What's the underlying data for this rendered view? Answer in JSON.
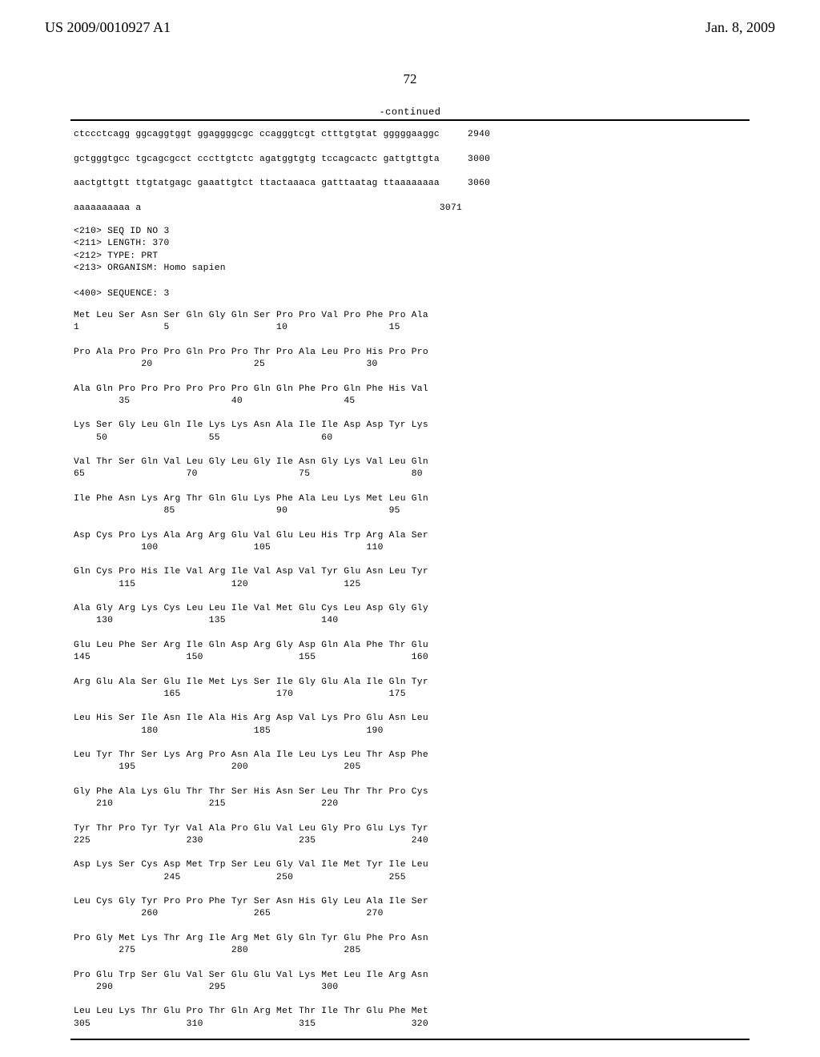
{
  "header": {
    "pub_number": "US 2009/0010927 A1",
    "pub_date": "Jan. 8, 2009"
  },
  "page_number": "72",
  "continued_label": "-continued",
  "nucleotide": {
    "lines": [
      {
        "seq": "ctccctcagg ggcaggtggt ggaggggcgc ccagggtcgt ctttgtgtat gggggaaggc",
        "pos": "2940"
      },
      {
        "seq": "gctgggtgcc tgcagcgcct cccttgtctc agatggtgtg tccagcactc gattgttgta",
        "pos": "3000"
      },
      {
        "seq": "aactgttgtt ttgtatgagc gaaattgtct ttactaaaca gatttaatag ttaaaaaaaa",
        "pos": "3060"
      },
      {
        "seq": "aaaaaaaaaa a",
        "pos": "3071"
      }
    ]
  },
  "meta": {
    "lines": [
      "<210> SEQ ID NO 3",
      "<211> LENGTH: 370",
      "<212> TYPE: PRT",
      "<213> ORGANISM: Homo sapien",
      "",
      "<400> SEQUENCE: 3"
    ]
  },
  "protein": {
    "rows": [
      {
        "aa": "Met Leu Ser Asn Ser Gln Gly Gln Ser Pro Pro Val Pro Phe Pro Ala",
        "nums": [
          "1",
          "",
          "",
          "",
          "5",
          "",
          "",
          "",
          "",
          "10",
          "",
          "",
          "",
          "",
          "15",
          ""
        ]
      },
      {
        "aa": "Pro Ala Pro Pro Pro Gln Pro Pro Thr Pro Ala Leu Pro His Pro Pro",
        "nums": [
          "",
          "",
          "",
          "20",
          "",
          "",
          "",
          "",
          "25",
          "",
          "",
          "",
          "",
          "30",
          "",
          ""
        ]
      },
      {
        "aa": "Ala Gln Pro Pro Pro Pro Pro Pro Gln Gln Phe Pro Gln Phe His Val",
        "nums": [
          "",
          "",
          "35",
          "",
          "",
          "",
          "",
          "40",
          "",
          "",
          "",
          "",
          "45",
          "",
          "",
          ""
        ]
      },
      {
        "aa": "Lys Ser Gly Leu Gln Ile Lys Lys Asn Ala Ile Ile Asp Asp Tyr Lys",
        "nums": [
          "",
          "50",
          "",
          "",
          "",
          "",
          "55",
          "",
          "",
          "",
          "",
          "60",
          "",
          "",
          "",
          ""
        ]
      },
      {
        "aa": "Val Thr Ser Gln Val Leu Gly Leu Gly Ile Asn Gly Lys Val Leu Gln",
        "nums": [
          "65",
          "",
          "",
          "",
          "",
          "70",
          "",
          "",
          "",
          "",
          "75",
          "",
          "",
          "",
          "",
          "80"
        ]
      },
      {
        "aa": "Ile Phe Asn Lys Arg Thr Gln Glu Lys Phe Ala Leu Lys Met Leu Gln",
        "nums": [
          "",
          "",
          "",
          "",
          "85",
          "",
          "",
          "",
          "",
          "90",
          "",
          "",
          "",
          "",
          "95",
          ""
        ]
      },
      {
        "aa": "Asp Cys Pro Lys Ala Arg Arg Glu Val Glu Leu His Trp Arg Ala Ser",
        "nums": [
          "",
          "",
          "",
          "100",
          "",
          "",
          "",
          "",
          "105",
          "",
          "",
          "",
          "",
          "110",
          "",
          ""
        ]
      },
      {
        "aa": "Gln Cys Pro His Ile Val Arg Ile Val Asp Val Tyr Glu Asn Leu Tyr",
        "nums": [
          "",
          "",
          "115",
          "",
          "",
          "",
          "",
          "120",
          "",
          "",
          "",
          "",
          "125",
          "",
          "",
          ""
        ]
      },
      {
        "aa": "Ala Gly Arg Lys Cys Leu Leu Ile Val Met Glu Cys Leu Asp Gly Gly",
        "nums": [
          "",
          "130",
          "",
          "",
          "",
          "",
          "135",
          "",
          "",
          "",
          "",
          "140",
          "",
          "",
          "",
          ""
        ]
      },
      {
        "aa": "Glu Leu Phe Ser Arg Ile Gln Asp Arg Gly Asp Gln Ala Phe Thr Glu",
        "nums": [
          "145",
          "",
          "",
          "",
          "",
          "150",
          "",
          "",
          "",
          "",
          "155",
          "",
          "",
          "",
          "",
          "160"
        ]
      },
      {
        "aa": "Arg Glu Ala Ser Glu Ile Met Lys Ser Ile Gly Glu Ala Ile Gln Tyr",
        "nums": [
          "",
          "",
          "",
          "",
          "165",
          "",
          "",
          "",
          "",
          "170",
          "",
          "",
          "",
          "",
          "175",
          ""
        ]
      },
      {
        "aa": "Leu His Ser Ile Asn Ile Ala His Arg Asp Val Lys Pro Glu Asn Leu",
        "nums": [
          "",
          "",
          "",
          "180",
          "",
          "",
          "",
          "",
          "185",
          "",
          "",
          "",
          "",
          "190",
          "",
          ""
        ]
      },
      {
        "aa": "Leu Tyr Thr Ser Lys Arg Pro Asn Ala Ile Leu Lys Leu Thr Asp Phe",
        "nums": [
          "",
          "",
          "195",
          "",
          "",
          "",
          "",
          "200",
          "",
          "",
          "",
          "",
          "205",
          "",
          "",
          ""
        ]
      },
      {
        "aa": "Gly Phe Ala Lys Glu Thr Thr Ser His Asn Ser Leu Thr Thr Pro Cys",
        "nums": [
          "",
          "210",
          "",
          "",
          "",
          "",
          "215",
          "",
          "",
          "",
          "",
          "220",
          "",
          "",
          "",
          ""
        ]
      },
      {
        "aa": "Tyr Thr Pro Tyr Tyr Val Ala Pro Glu Val Leu Gly Pro Glu Lys Tyr",
        "nums": [
          "225",
          "",
          "",
          "",
          "",
          "230",
          "",
          "",
          "",
          "",
          "235",
          "",
          "",
          "",
          "",
          "240"
        ]
      },
      {
        "aa": "Asp Lys Ser Cys Asp Met Trp Ser Leu Gly Val Ile Met Tyr Ile Leu",
        "nums": [
          "",
          "",
          "",
          "",
          "245",
          "",
          "",
          "",
          "",
          "250",
          "",
          "",
          "",
          "",
          "255",
          ""
        ]
      },
      {
        "aa": "Leu Cys Gly Tyr Pro Pro Phe Tyr Ser Asn His Gly Leu Ala Ile Ser",
        "nums": [
          "",
          "",
          "",
          "260",
          "",
          "",
          "",
          "",
          "265",
          "",
          "",
          "",
          "",
          "270",
          "",
          ""
        ]
      },
      {
        "aa": "Pro Gly Met Lys Thr Arg Ile Arg Met Gly Gln Tyr Glu Phe Pro Asn",
        "nums": [
          "",
          "",
          "275",
          "",
          "",
          "",
          "",
          "280",
          "",
          "",
          "",
          "",
          "285",
          "",
          "",
          ""
        ]
      },
      {
        "aa": "Pro Glu Trp Ser Glu Val Ser Glu Glu Val Lys Met Leu Ile Arg Asn",
        "nums": [
          "",
          "290",
          "",
          "",
          "",
          "",
          "295",
          "",
          "",
          "",
          "",
          "300",
          "",
          "",
          "",
          ""
        ]
      },
      {
        "aa": "Leu Leu Lys Thr Glu Pro Thr Gln Arg Met Thr Ile Thr Glu Phe Met",
        "nums": [
          "305",
          "",
          "",
          "",
          "",
          "310",
          "",
          "",
          "",
          "",
          "315",
          "",
          "",
          "",
          "",
          "320"
        ]
      }
    ]
  },
  "style": {
    "seq_col_width": 61,
    "pos_pad": 8
  }
}
